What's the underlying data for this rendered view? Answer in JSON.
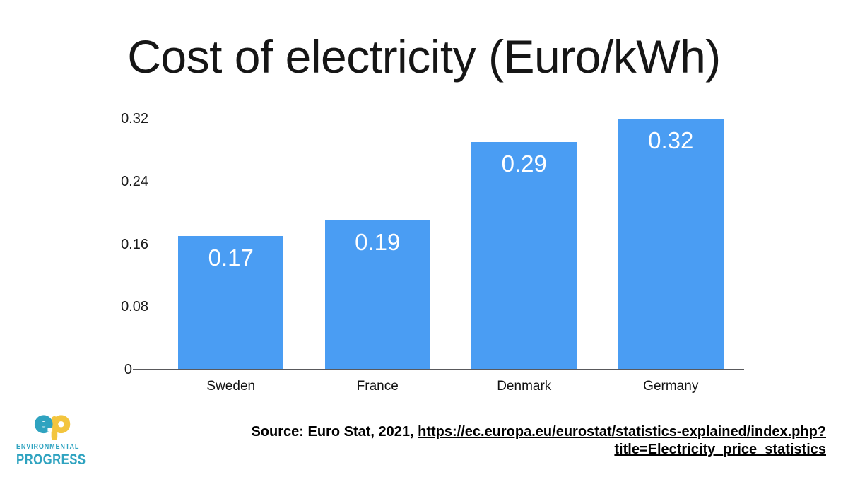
{
  "slide": {
    "title": "Cost of electricity (Euro/kWh)"
  },
  "chart_data": {
    "type": "bar",
    "title": "Cost of electricity (Euro/kWh)",
    "categories": [
      "Sweden",
      "France",
      "Denmark",
      "Germany"
    ],
    "values": [
      0.17,
      0.19,
      0.29,
      0.32
    ],
    "value_labels": [
      "0.17",
      "0.19",
      "0.29",
      "0.32"
    ],
    "xlabel": "",
    "ylabel": "",
    "ylim": [
      0,
      0.32
    ],
    "yticks": [
      0,
      0.08,
      0.16,
      0.24,
      0.32
    ],
    "ytick_labels": [
      "0",
      "0.08",
      "0.16",
      "0.24",
      "0.32"
    ],
    "grid": true,
    "legend": false,
    "bar_color": "#4A9DF3",
    "value_label_color": "#FFFFFF",
    "value_label_position": "inside-top"
  },
  "source": {
    "prefix": "Source: Euro Stat, 2021, ",
    "url_line1": "https://ec.europa.eu/eurostat/statistics-explained/index.php?",
    "url_line2": "title=Electricity_price_statistics"
  },
  "logo": {
    "monogram": "ep",
    "line1": "ENVIRONMENTAL",
    "line2": "PROGRESS",
    "teal": "#2FA3C0",
    "yellow": "#F3C53E"
  },
  "colors": {
    "bar_blue": "#4A9DF3",
    "gridline": "#DADADA",
    "axis_line": "#59595C",
    "text": "#1A1A1A"
  }
}
